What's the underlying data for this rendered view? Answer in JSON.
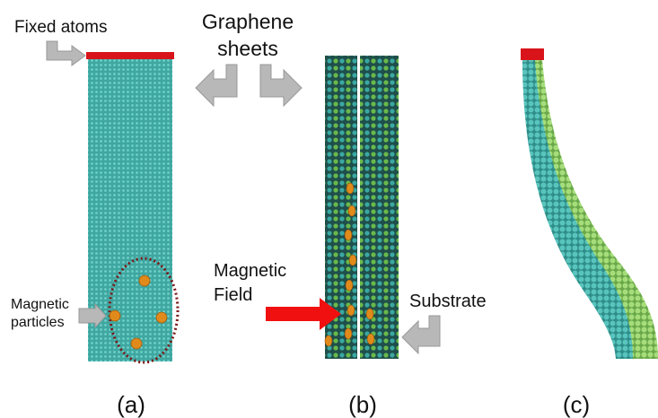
{
  "labels": {
    "fixed_atoms": "Fixed atoms",
    "graphene_sheets": [
      "Graphene",
      "sheets"
    ],
    "magnetic_particles": [
      "Magnetic",
      "particles"
    ],
    "magnetic_field": [
      "Magnetic",
      "Field"
    ],
    "substrate": "Substrate"
  },
  "panels": [
    "(a)",
    "(b)",
    "(c)"
  ]
}
